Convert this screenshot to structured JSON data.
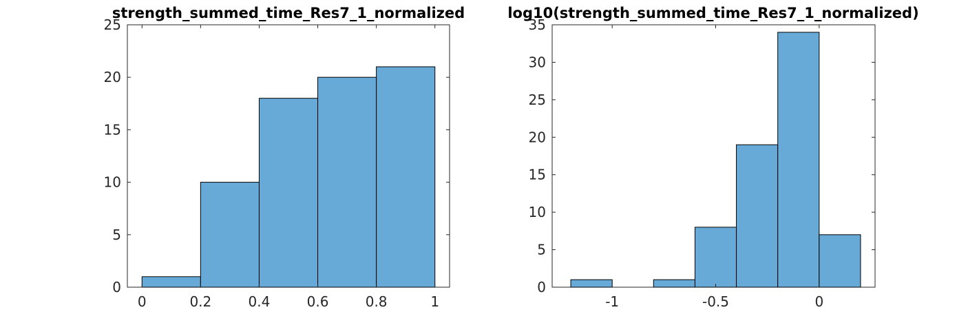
{
  "chart_data": [
    {
      "type": "bar",
      "subtype": "histogram",
      "title": "strength_summed_time_Res7_1_normalized",
      "xlabel": "",
      "ylabel": "",
      "bin_edges": [
        0,
        0.2,
        0.4,
        0.6,
        0.8,
        1.0
      ],
      "values": [
        1,
        10,
        18,
        20,
        21
      ],
      "xlim": [
        -0.05,
        1.05
      ],
      "ylim": [
        0,
        25
      ],
      "xticks": [
        0,
        0.2,
        0.4,
        0.6,
        0.8,
        1
      ],
      "xtick_labels": [
        "0",
        "0.2",
        "0.4",
        "0.6",
        "0.8",
        "1"
      ],
      "yticks": [
        0,
        5,
        10,
        15,
        20,
        25
      ],
      "ytick_labels": [
        "0",
        "5",
        "10",
        "15",
        "20",
        "25"
      ],
      "grid": false,
      "bar_color": "#67aad7",
      "edge_color": "#000000"
    },
    {
      "type": "bar",
      "subtype": "histogram",
      "title": "log10(strength_summed_time_Res7_1_normalized)",
      "xlabel": "",
      "ylabel": "",
      "bin_edges": [
        -1.2,
        -1.0,
        -0.8,
        -0.6,
        -0.4,
        -0.2,
        0.0,
        0.2
      ],
      "values": [
        1,
        0,
        1,
        8,
        19,
        34,
        7
      ],
      "xlim": [
        -1.29,
        0.27
      ],
      "ylim": [
        0,
        35
      ],
      "xticks": [
        -1,
        -0.5,
        0
      ],
      "xtick_labels": [
        "-1",
        "-0.5",
        "0"
      ],
      "yticks": [
        0,
        5,
        10,
        15,
        20,
        25,
        30,
        35
      ],
      "ytick_labels": [
        "0",
        "5",
        "10",
        "15",
        "20",
        "25",
        "30",
        "35"
      ],
      "grid": false,
      "bar_color": "#67aad7",
      "edge_color": "#000000"
    }
  ]
}
